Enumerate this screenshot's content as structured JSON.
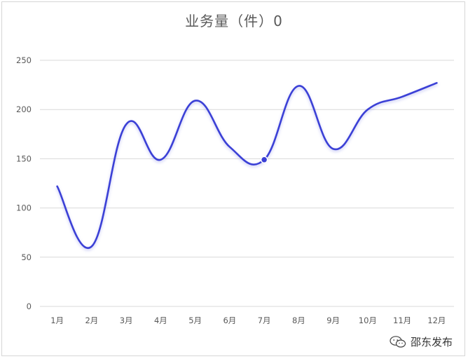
{
  "chart_data": {
    "type": "line",
    "title": "业务量（件）0",
    "xlabel": "",
    "ylabel": "",
    "categories": [
      "1月",
      "2月",
      "3月",
      "4月",
      "5月",
      "6月",
      "7月",
      "8月",
      "9月",
      "10月",
      "11月",
      "12月"
    ],
    "series": [
      {
        "values": [
          122,
          61,
          185,
          149,
          209,
          162,
          149,
          224,
          160,
          200,
          213,
          227
        ]
      }
    ],
    "ylim": [
      0,
      250
    ],
    "yticks": [
      0,
      50,
      100,
      150,
      200,
      250
    ],
    "grid": true,
    "legend": "none",
    "highlighted_point": {
      "category": "7月",
      "value": 149
    },
    "line_color": "#3a3fd6"
  },
  "watermark": {
    "text": "邵东发布",
    "icon": "wechat-icon"
  }
}
